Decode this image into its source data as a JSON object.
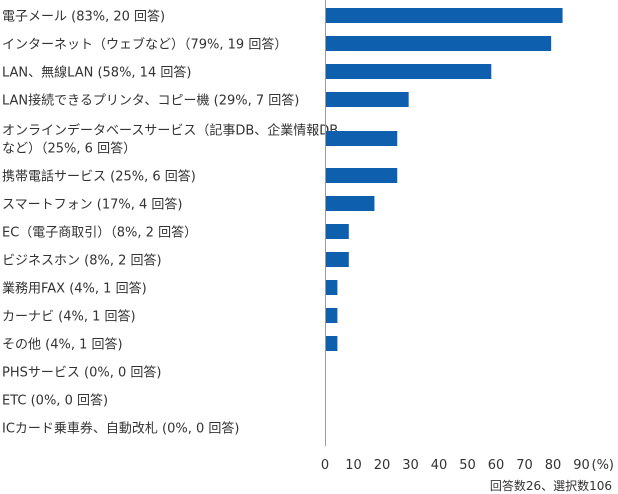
{
  "chart_data": {
    "type": "bar",
    "orientation": "horizontal",
    "categories": [
      [
        "電子メール (83%, 20 回答)"
      ],
      [
        "インターネット（ウェブなど）（79%, 19 回答）"
      ],
      [
        "LAN、無線LAN (58%, 14 回答)"
      ],
      [
        "LAN接続できるプリンタ、コピー機 (29%, 7 回答)"
      ],
      [
        "オンラインデータベースサービス（記事DB、企業情報DB",
        "など）（25%, 6 回答）"
      ],
      [
        "携帯電話サービス (25%, 6 回答)"
      ],
      [
        "スマートフォン (17%, 4 回答)"
      ],
      [
        "EC（電子商取引）（8%, 2 回答）"
      ],
      [
        "ビジネスホン (8%, 2 回答)"
      ],
      [
        "業務用FAX (4%, 1 回答)"
      ],
      [
        "カーナビ (4%, 1 回答)"
      ],
      [
        "その他 (4%, 1 回答)"
      ],
      [
        "PHSサービス (0%, 0 回答)"
      ],
      [
        "ETC (0%, 0 回答)"
      ],
      [
        "ICカード乗車券、自動改札 (0%, 0 回答)"
      ]
    ],
    "values": [
      83,
      79,
      58,
      29,
      25,
      25,
      17,
      8,
      8,
      4,
      4,
      4,
      0,
      0,
      0
    ],
    "x_ticks": [
      "0",
      "10",
      "20",
      "30",
      "40",
      "50",
      "60",
      "70",
      "80",
      "90"
    ],
    "x_unit": "(%)",
    "xlim": [
      0,
      95
    ],
    "note": "回答数26、選択数106",
    "bar_color": "#0e5fad",
    "grid": false
  }
}
